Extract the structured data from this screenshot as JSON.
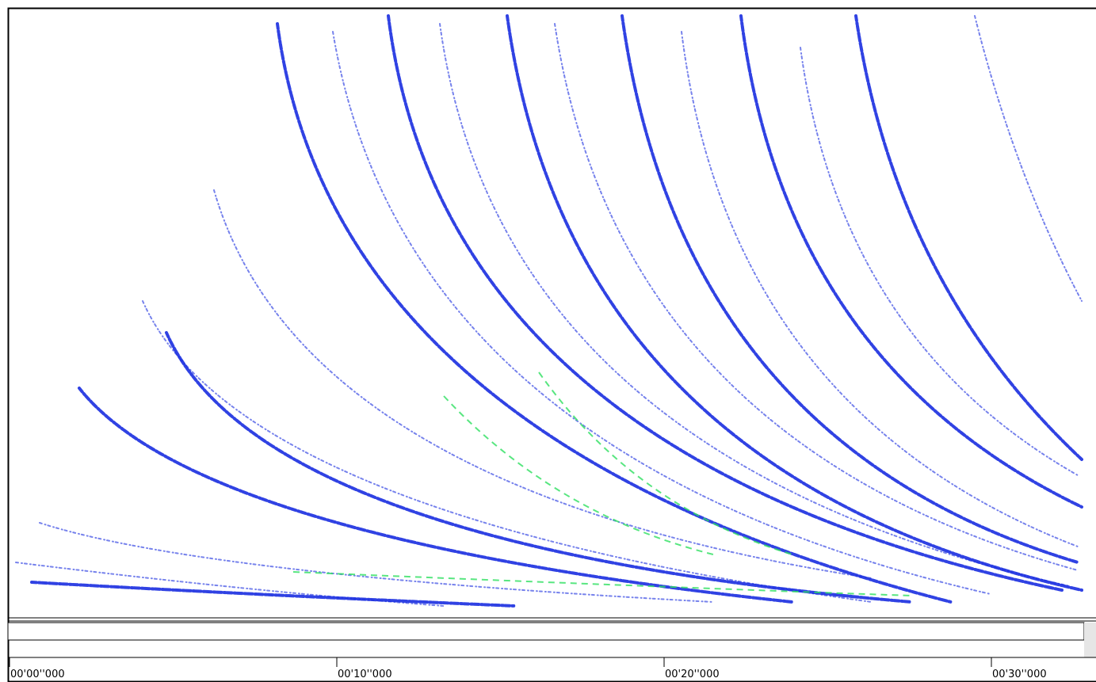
{
  "ruler": {
    "labels": [
      "00'00''000",
      "00'10''000",
      "00'20''000",
      "00'30''000"
    ]
  }
}
